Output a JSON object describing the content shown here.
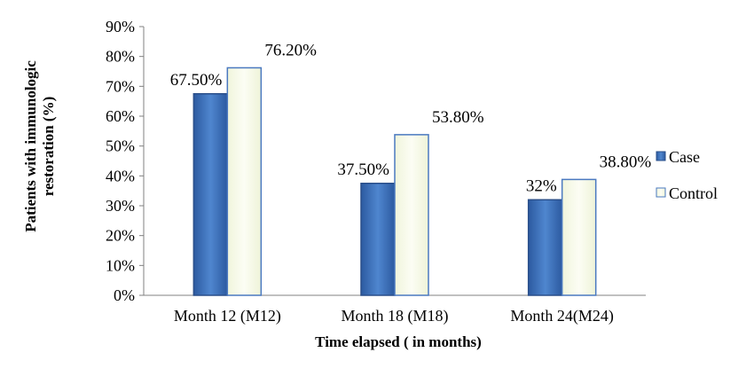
{
  "chart_data": {
    "type": "bar",
    "title": "",
    "xlabel": "Time  elapsed ( in months)",
    "ylabel_lines": [
      "Patients with immunologic",
      "restoration (%)"
    ],
    "categories": [
      "Month 12 (M12)",
      "Month 18 (M18)",
      "Month 24(M24)"
    ],
    "y_ticks": [
      "0%",
      "10%",
      "20%",
      "30%",
      "40%",
      "50%",
      "60%",
      "70%",
      "80%",
      "90%"
    ],
    "ylim": [
      0,
      90
    ],
    "grid": false,
    "legend_position": "right",
    "series": [
      {
        "name": "Case",
        "values": [
          67.5,
          37.5,
          32
        ],
        "labels": [
          "67.50%",
          "37.50%",
          "32%"
        ],
        "color": "#3d6fb6"
      },
      {
        "name": "Control",
        "values": [
          76.2,
          53.8,
          38.8
        ],
        "labels": [
          "76.20%",
          "53.80%",
          "38.80%"
        ],
        "color": "#f6f9e6"
      }
    ]
  }
}
